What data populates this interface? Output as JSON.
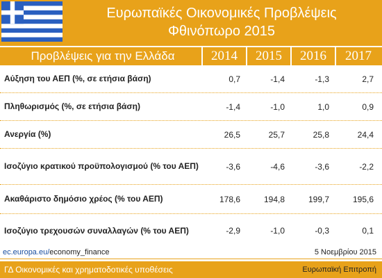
{
  "header": {
    "title_line1": "Ευρωπαϊκές Οικονομικές Προβλέψεις",
    "title_line2": "Φθινόπωρο 2015"
  },
  "table": {
    "label_header": "Προβλέψεις για την Ελλάδα",
    "years": [
      "2014",
      "2015",
      "2016",
      "2017"
    ],
    "rows": [
      {
        "label": "Αύξηση του ΑΕΠ (%, σε ετήσια βάση)",
        "values": [
          "0,7",
          "-1,4",
          "-1,3",
          "2,7"
        ]
      },
      {
        "label": "Πληθωρισμός (%, σε ετήσια βάση)",
        "values": [
          "-1,4",
          "-1,0",
          "1,0",
          "0,9"
        ]
      },
      {
        "label": "Ανεργία (%)",
        "values": [
          "26,5",
          "25,7",
          "25,8",
          "24,4"
        ]
      },
      {
        "label": "Ισοζύγιο κρατικού προϋπολογισμού (% του ΑΕΠ)",
        "values": [
          "-3,6",
          "-4,6",
          "-3,6",
          "-2,2"
        ]
      },
      {
        "label": "Ακαθάριστο δημόσιο χρέος (% του ΑΕΠ)",
        "values": [
          "178,6",
          "194,8",
          "199,7",
          "195,6"
        ]
      },
      {
        "label": "Ισοζύγιο τρεχουσών συναλλαγών (% του ΑΕΠ)",
        "values": [
          "-2,9",
          "-1,0",
          "-0,3",
          "0,1"
        ]
      }
    ]
  },
  "source": {
    "domain": "ec.europa.eu/",
    "path": "economy_finance"
  },
  "date": "5 Νοεμβρίου 2015",
  "footer": {
    "dg": "ΓΔ Οικονομικές και χρηματοδοτικές υποθέσεις",
    "ec": "Ευρωπαϊκή Επιτροπή"
  },
  "colors": {
    "accent": "#e8a21a",
    "flag_blue": "#2a5fbf"
  },
  "icons": {
    "flag": "greek-flag-icon"
  }
}
